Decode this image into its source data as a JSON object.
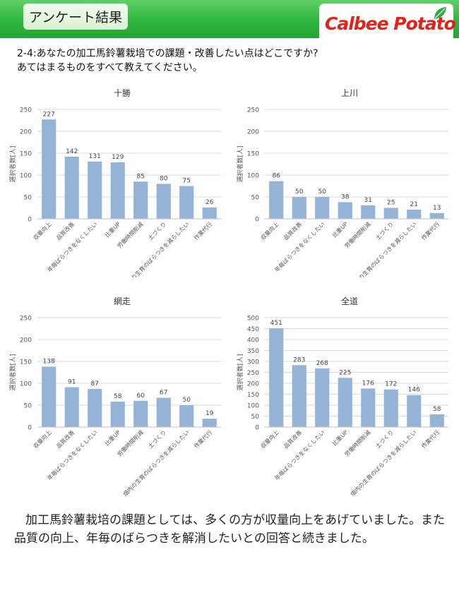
{
  "header": {
    "title": "アンケート結果",
    "logo_text": "Calbee Potato"
  },
  "question": {
    "line1": "2-4:あなたの加工馬鈴薯栽培での課題・改善したい点はどこですか?",
    "line2": "あてはまるものをすべて教えてください。"
  },
  "chart_data": [
    {
      "type": "bar",
      "title": "十勝",
      "ylabel": "選択者数[人]",
      "ylim": [
        0,
        250
      ],
      "yticks": [
        0,
        50,
        100,
        150,
        200,
        250
      ],
      "categories": [
        "収量向上",
        "品質改善",
        "年毎ばらつきをなくしたい",
        "比重UP",
        "労働時間削減",
        "土づくり",
        "畑内の生育のばらつきを減らしたい",
        "作業代行"
      ],
      "values": [
        227,
        142,
        131,
        129,
        85,
        80,
        75,
        26
      ]
    },
    {
      "type": "bar",
      "title": "上川",
      "ylabel": "選択者数[人]",
      "ylim": [
        0,
        250
      ],
      "yticks": [
        0,
        50,
        100,
        150,
        200,
        250
      ],
      "categories": [
        "収量向上",
        "品質改善",
        "年毎ばらつきをなくしたい",
        "比重UP",
        "労働時間削減",
        "土づくり",
        "畑内の生育のばらつきを減らしたい",
        "作業代行"
      ],
      "values": [
        86,
        50,
        50,
        38,
        31,
        25,
        21,
        13
      ]
    },
    {
      "type": "bar",
      "title": "網走",
      "ylabel": "選択者数[人]",
      "ylim": [
        0,
        250
      ],
      "yticks": [
        0,
        50,
        100,
        150,
        200,
        250
      ],
      "categories": [
        "収量向上",
        "品質改善",
        "年毎ばらつきをなくしたい",
        "比重UP",
        "労働時間削減",
        "土づくり",
        "畑内の生育のばらつきを減らしたい",
        "作業代行"
      ],
      "values": [
        138,
        91,
        87,
        58,
        60,
        67,
        50,
        19
      ]
    },
    {
      "type": "bar",
      "title": "全道",
      "ylabel": "選択者数[人]",
      "ylim": [
        0,
        500
      ],
      "yticks": [
        0,
        50,
        100,
        150,
        200,
        250,
        300,
        350,
        400,
        450,
        500
      ],
      "categories": [
        "収量向上",
        "品質改善",
        "年毎ばらつきをなくしたい",
        "比重UP",
        "労働時間削減",
        "土づくり",
        "畑内の生育のばらつきを減らしたい",
        "作業代行"
      ],
      "values": [
        451,
        283,
        268,
        225,
        176,
        172,
        146,
        58
      ]
    }
  ],
  "colors": {
    "bar": "#95b3d7",
    "header_green": "#2fb53d",
    "logo_red": "#e2231a",
    "grid": "#d9d9d9"
  },
  "summary": "加工馬鈴薯栽培の課題としては、多くの方が収量向上をあげていました。また品質の向上、年毎のばらつきを解消したいとの回答と続きました。"
}
